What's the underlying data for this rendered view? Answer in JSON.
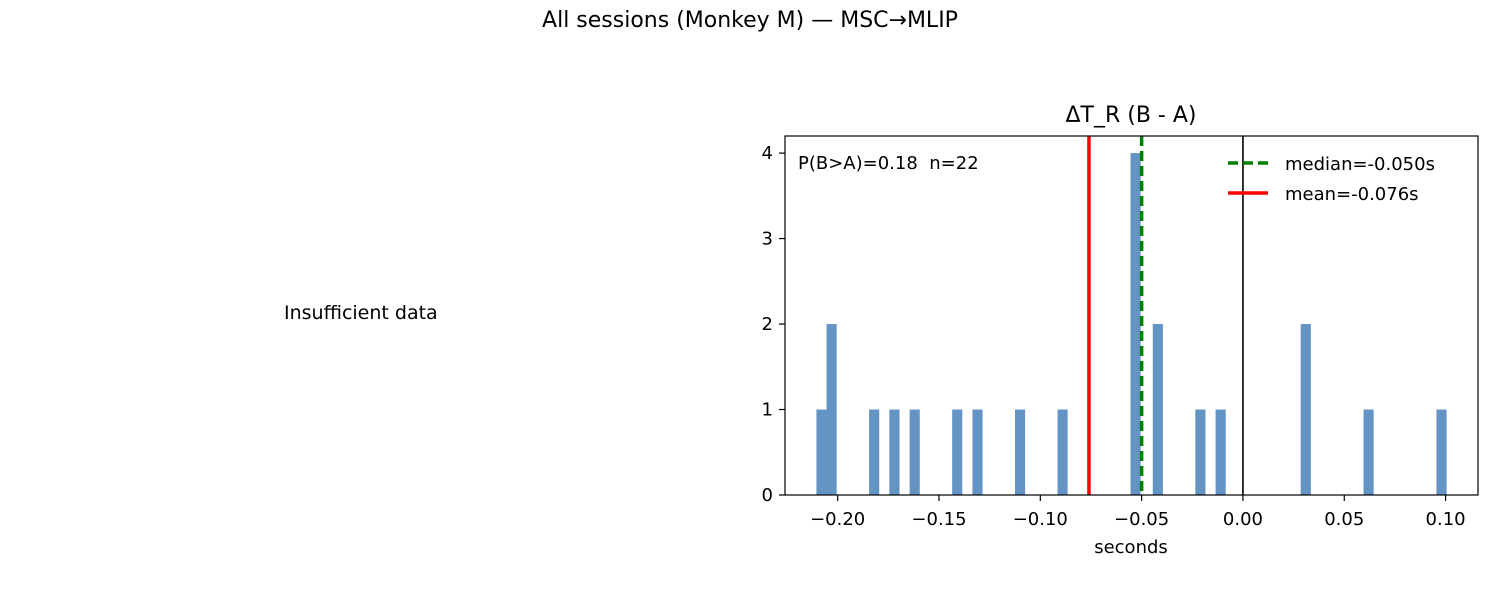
{
  "figure": {
    "suptitle": "All sessions (Monkey M) — MSC→MLIP",
    "left_panel_message": "Insufficient data"
  },
  "colors": {
    "bars": "#6494c3",
    "median": "#008000",
    "mean": "#ff0000",
    "zero_line": "#000000"
  },
  "chart_data": {
    "type": "bar",
    "title": "ΔT_R (B - A)",
    "xlabel": "seconds",
    "ylabel": "",
    "xlim": [
      -0.226,
      0.116
    ],
    "ylim": [
      0,
      4.2
    ],
    "xticks": [
      -0.2,
      -0.15,
      -0.1,
      -0.05,
      0.0,
      0.05,
      0.1
    ],
    "xtick_labels": [
      "−0.20",
      "−0.15",
      "−0.10",
      "−0.05",
      "0.00",
      "0.05",
      "0.10"
    ],
    "yticks": [
      0,
      1,
      2,
      3,
      4
    ],
    "ytick_labels": [
      "0",
      "1",
      "2",
      "3",
      "4"
    ],
    "bin_width": 0.005,
    "bins": [
      {
        "x": -0.208,
        "count": 1
      },
      {
        "x": -0.203,
        "count": 2
      },
      {
        "x": -0.182,
        "count": 1
      },
      {
        "x": -0.172,
        "count": 1
      },
      {
        "x": -0.162,
        "count": 1
      },
      {
        "x": -0.141,
        "count": 1
      },
      {
        "x": -0.131,
        "count": 1
      },
      {
        "x": -0.11,
        "count": 1
      },
      {
        "x": -0.089,
        "count": 1
      },
      {
        "x": -0.053,
        "count": 4
      },
      {
        "x": -0.042,
        "count": 2
      },
      {
        "x": -0.021,
        "count": 1
      },
      {
        "x": -0.011,
        "count": 1
      },
      {
        "x": 0.031,
        "count": 2
      },
      {
        "x": 0.062,
        "count": 1
      },
      {
        "x": 0.098,
        "count": 1
      }
    ],
    "annotation": "P(B>A)=0.18  n=22",
    "median": {
      "value": -0.05,
      "label": "median=-0.050s"
    },
    "mean": {
      "value": -0.076,
      "label": "mean=-0.076s"
    },
    "zero_line": 0.0,
    "grid": false,
    "legend_position": "top-right"
  }
}
